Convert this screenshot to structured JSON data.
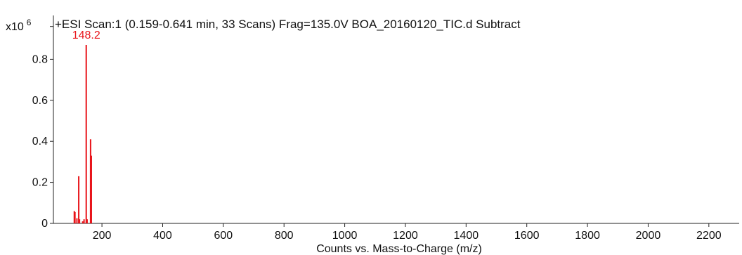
{
  "chart_data": {
    "type": "bar",
    "title": "+ESI Scan:1 (0.159-0.641 min, 33 Scans) Frag=135.0V BOA_20160120_TIC.d  Subtract",
    "xlabel": "Counts vs. Mass-to-Charge (m/z)",
    "ylabel": "",
    "y_multiplier": "x10",
    "y_multiplier_exp": "6",
    "xlim": [
      40,
      2300
    ],
    "ylim": [
      0,
      1.0
    ],
    "x_ticks": [
      200,
      400,
      600,
      800,
      1000,
      1200,
      1400,
      1600,
      1800,
      2000,
      2200
    ],
    "y_ticks": [
      0,
      0.2,
      0.4,
      0.6,
      0.8
    ],
    "y_tick_labels": [
      "0",
      "0.2",
      "0.4",
      "0.6",
      "0.8"
    ],
    "grid": false,
    "line_color": "#e8141a",
    "peaks": [
      {
        "mz": 108.9,
        "intensity": 0.06
      },
      {
        "mz": 111.0,
        "intensity": 0.055
      },
      {
        "mz": 117.5,
        "intensity": 0.025
      },
      {
        "mz": 123.5,
        "intensity": 0.23
      },
      {
        "mz": 126.0,
        "intensity": 0.02
      },
      {
        "mz": 136.5,
        "intensity": 0.01
      },
      {
        "mz": 141.0,
        "intensity": 0.02
      },
      {
        "mz": 148.2,
        "intensity": 0.87
      },
      {
        "mz": 151.0,
        "intensity": 0.02
      },
      {
        "mz": 162.5,
        "intensity": 0.41
      },
      {
        "mz": 165.0,
        "intensity": 0.33
      }
    ],
    "annotations": [
      {
        "text": "148.2",
        "mz": 148.2,
        "intensity": 0.87,
        "color": "#e8141a"
      }
    ]
  }
}
